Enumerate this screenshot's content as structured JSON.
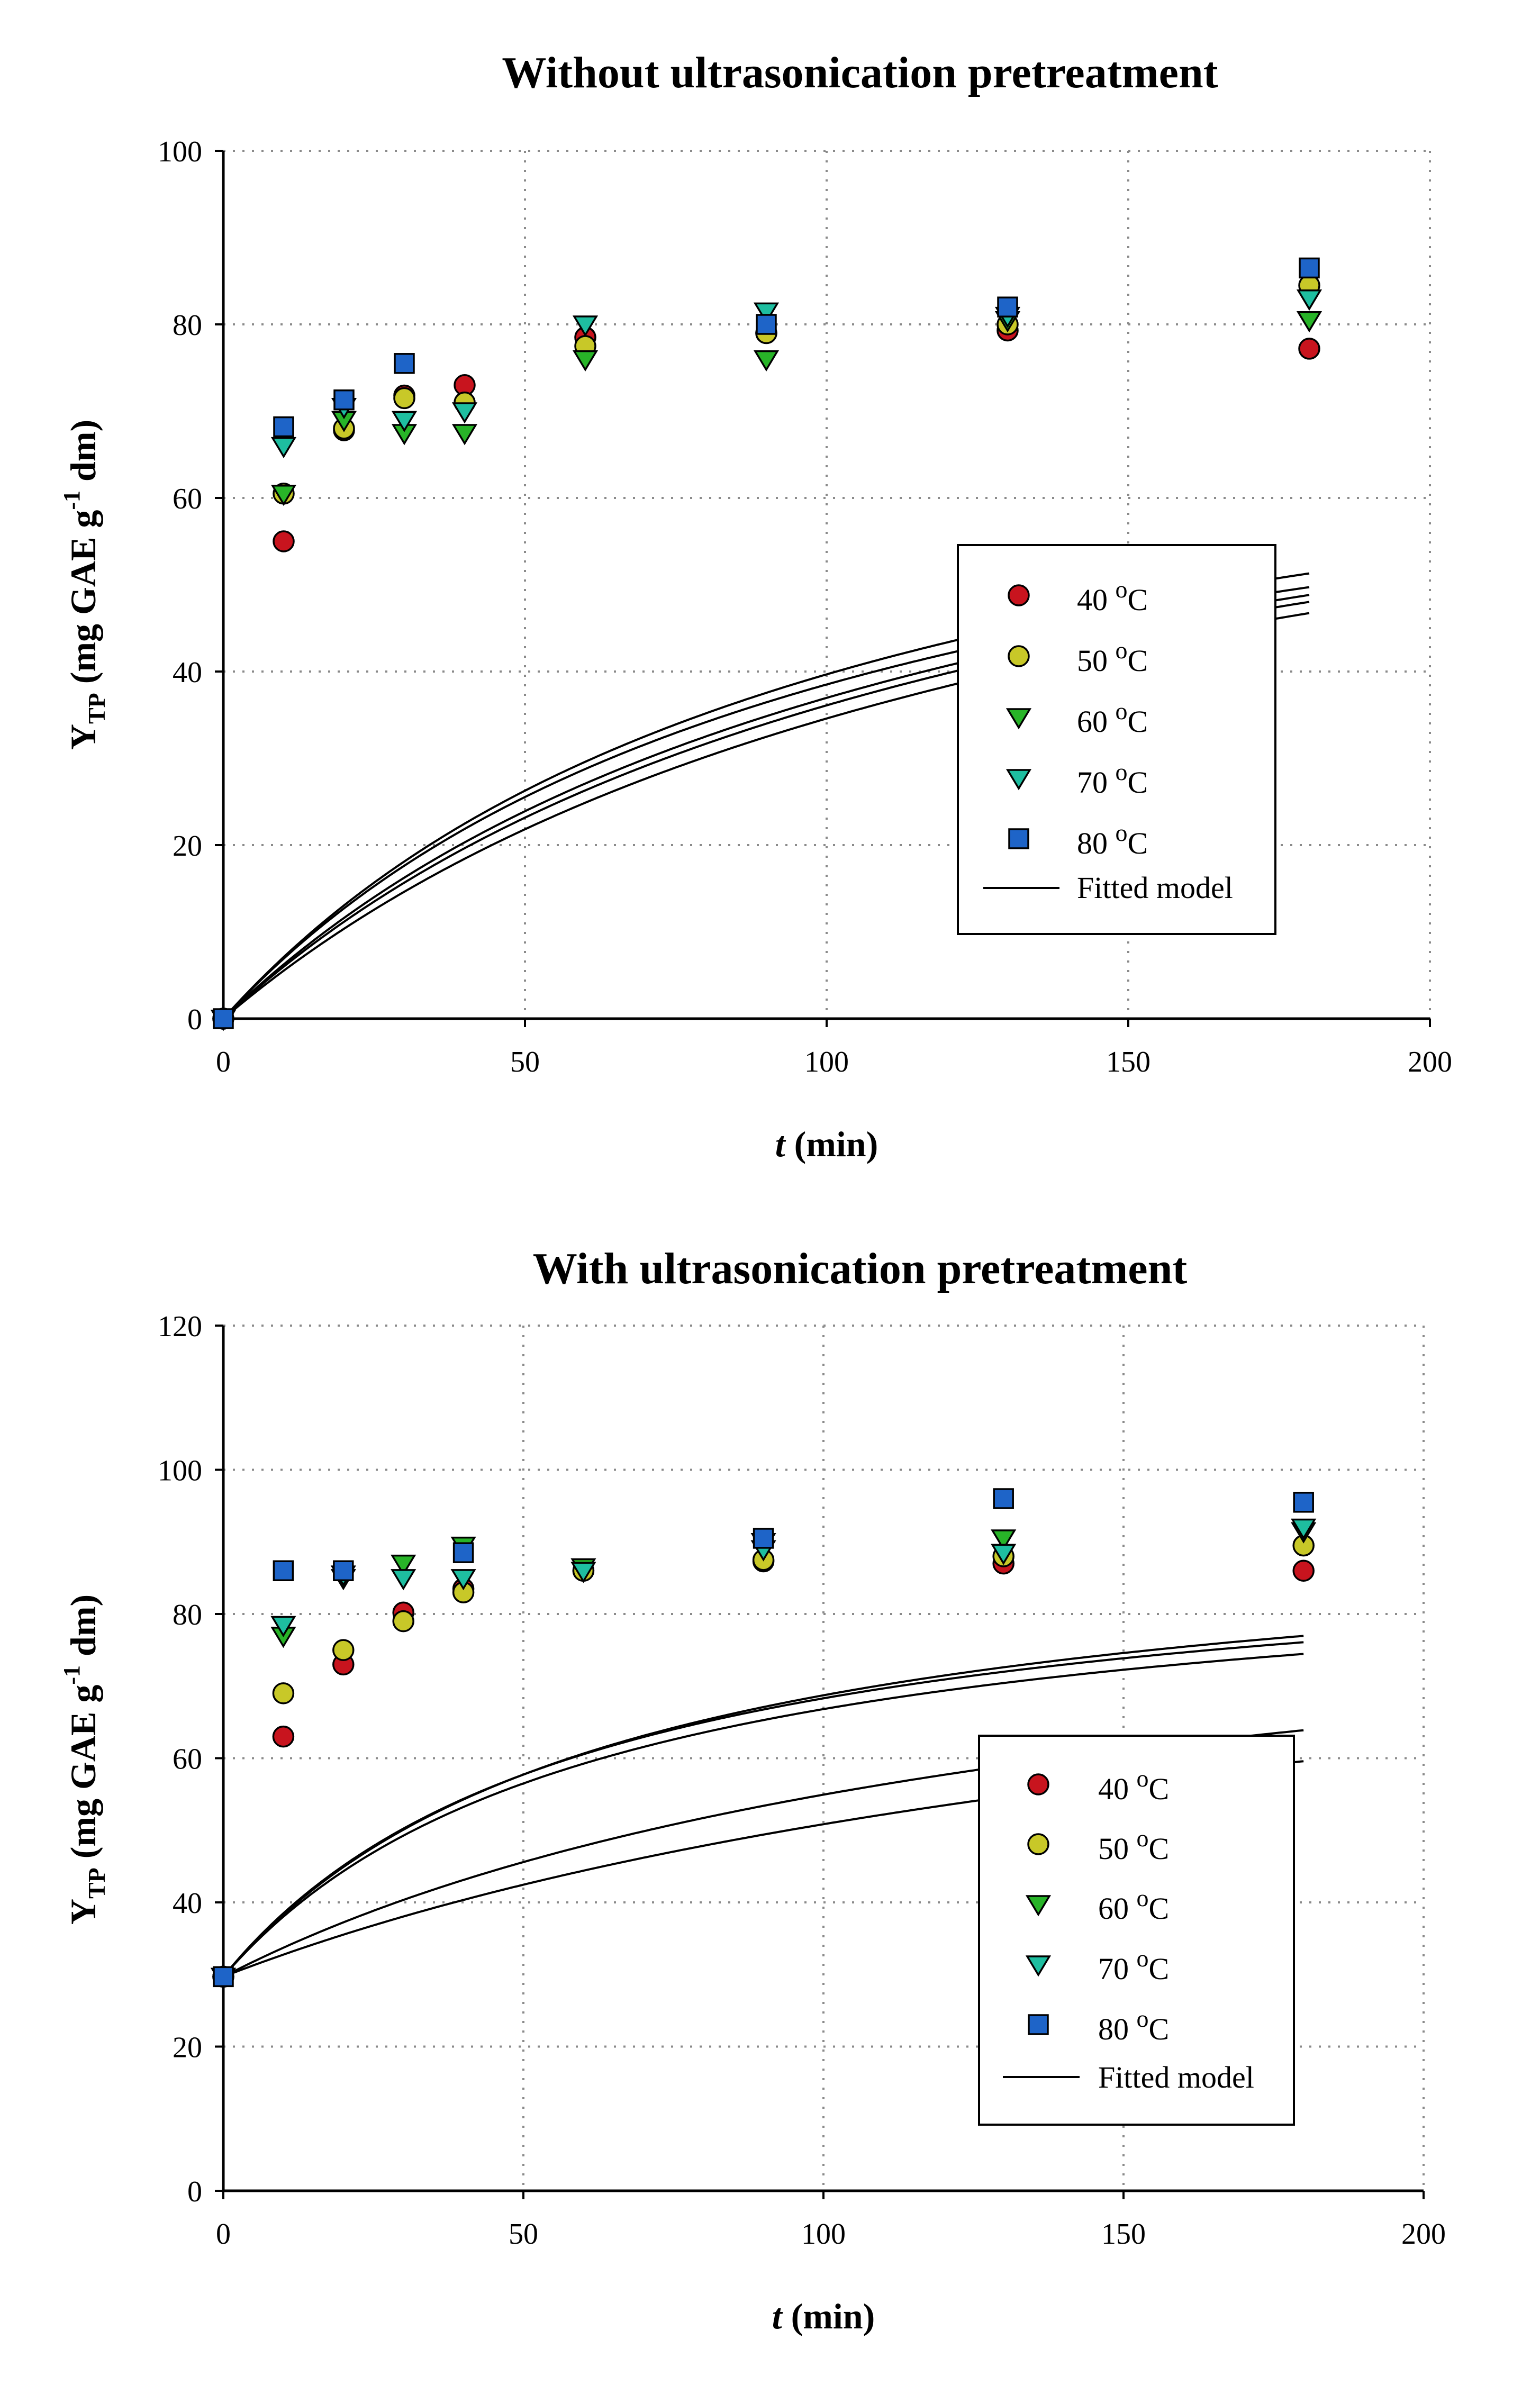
{
  "colors": {
    "40": "#c8141e",
    "50": "#c8c828",
    "60": "#28b428",
    "70": "#1ebea0",
    "80": "#1e64c8"
  },
  "chart_data": [
    {
      "type": "scatter",
      "title": "Without ultrasonication pretreatment",
      "xlabel_var": "t",
      "xlabel_unit": " (min)",
      "ylabel_main": "Y",
      "ylabel_sub": "TP",
      "ylabel_unit_a": " (mg GAE g",
      "ylabel_sup": "-1",
      "ylabel_unit_b": " dm)",
      "xlim": [
        0,
        200
      ],
      "ylim": [
        0,
        100
      ],
      "xticks": [
        0,
        50,
        100,
        150,
        200
      ],
      "yticks": [
        0,
        20,
        40,
        60,
        80,
        100
      ],
      "grid": true,
      "legend_position": "right-middle",
      "fitted_label": "Fitted model",
      "series": [
        {
          "name": "40",
          "label": "40 ",
          "unit": "C",
          "degree": "o",
          "marker": "circle",
          "x": [
            0,
            10,
            20,
            30,
            40,
            60,
            90,
            130,
            180
          ],
          "y": [
            0,
            55,
            67.8,
            71.8,
            73,
            78.5,
            79,
            79.3,
            77.2
          ],
          "fit": [
            78.2,
            0.0097
          ]
        },
        {
          "name": "50",
          "label": "50 ",
          "unit": "C",
          "degree": "o",
          "marker": "circle",
          "x": [
            0,
            10,
            20,
            30,
            40,
            60,
            90,
            130,
            180
          ],
          "y": [
            0,
            60.5,
            68,
            71.5,
            71,
            77.5,
            79,
            80,
            84.5
          ],
          "fit": [
            81.5,
            0.0083
          ]
        },
        {
          "name": "60",
          "label": "60 ",
          "unit": "C",
          "degree": "o",
          "marker": "triangle-down",
          "x": [
            0,
            10,
            20,
            30,
            40,
            60,
            90,
            130,
            180
          ],
          "y": [
            0,
            60.5,
            69,
            67.5,
            67.5,
            76,
            76,
            80.5,
            80.5
          ],
          "fit": [
            81.0,
            0.0096
          ]
        },
        {
          "name": "70",
          "label": "70 ",
          "unit": "C",
          "degree": "o",
          "marker": "triangle-down",
          "x": [
            0,
            10,
            20,
            30,
            40,
            60,
            90,
            130,
            180
          ],
          "y": [
            0,
            66,
            70.5,
            69,
            70,
            80,
            81.5,
            81,
            83
          ],
          "fit": [
            83.3,
            0.0071
          ]
        },
        {
          "name": "80",
          "label": "80 ",
          "unit": "C",
          "degree": "o",
          "marker": "square",
          "x": [
            0,
            10,
            20,
            30,
            40,
            60,
            90,
            130,
            180
          ],
          "y": [
            0,
            68.2,
            71.3,
            75.5,
            null,
            null,
            80,
            82,
            86.5
          ],
          "fit": [
            81.8,
            0.0079
          ]
        }
      ]
    },
    {
      "type": "scatter",
      "title": "With ultrasonication pretreatment",
      "xlabel_var": "t",
      "xlabel_unit": " (min)",
      "ylabel_main": "Y",
      "ylabel_sub": "TP",
      "ylabel_unit_a": " (mg GAE g",
      "ylabel_sup": "-1",
      "ylabel_unit_b": " dm)",
      "xlim": [
        0,
        200
      ],
      "ylim": [
        0,
        120
      ],
      "xticks": [
        0,
        50,
        100,
        150,
        200
      ],
      "yticks": [
        0,
        20,
        40,
        60,
        80,
        100,
        120
      ],
      "grid": true,
      "legend_position": "bottom-right",
      "fitted_label": "Fitted model",
      "series": [
        {
          "name": "40",
          "label": "40 ",
          "unit": "C",
          "degree": "o",
          "marker": "circle",
          "x": [
            0,
            10,
            20,
            30,
            40,
            60,
            90,
            130,
            180
          ],
          "y": [
            29.7,
            63,
            73,
            80.2,
            83.5,
            86,
            87.3,
            87,
            86
          ],
          "fit": [
            29.7,
            61.8,
            0.0052
          ]
        },
        {
          "name": "50",
          "label": "50 ",
          "unit": "C",
          "degree": "o",
          "marker": "circle",
          "x": [
            0,
            10,
            20,
            30,
            40,
            60,
            90,
            130,
            180
          ],
          "y": [
            29.7,
            69,
            75,
            79,
            83,
            86,
            87.5,
            88,
            89.5
          ],
          "fit": [
            29.7,
            61.3,
            0.007
          ]
        },
        {
          "name": "60",
          "label": "60 ",
          "unit": "C",
          "degree": "o",
          "marker": "triangle-down",
          "x": [
            0,
            10,
            20,
            30,
            40,
            60,
            90,
            130,
            180
          ],
          "y": [
            29.7,
            77,
            85,
            87,
            89.5,
            86.5,
            90,
            90.5,
            91.5
          ],
          "fit": [
            29.7,
            62.0,
            0.0165
          ]
        },
        {
          "name": "70",
          "label": "70 ",
          "unit": "C",
          "degree": "o",
          "marker": "triangle-down",
          "x": [
            0,
            10,
            20,
            30,
            40,
            60,
            90,
            130,
            180
          ],
          "y": [
            29.7,
            78.5,
            85.5,
            85,
            85,
            86,
            89,
            88.5,
            92
          ],
          "fit": [
            29.7,
            60.3,
            0.016
          ]
        },
        {
          "name": "80",
          "label": "80 ",
          "unit": "C",
          "degree": "o",
          "marker": "square",
          "x": [
            0,
            10,
            20,
            30,
            40,
            60,
            90,
            130,
            180
          ],
          "y": [
            29.7,
            86,
            86,
            null,
            88.5,
            null,
            90.5,
            96,
            95.5
          ],
          "fit": [
            29.7,
            64.2,
            0.0155
          ]
        }
      ]
    }
  ]
}
